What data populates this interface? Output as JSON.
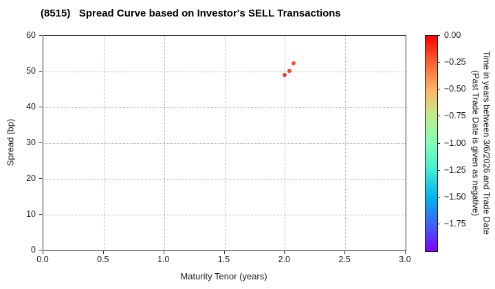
{
  "title": "(8515)   Spread Curve based on Investor's SELL Transactions",
  "chart_data": {
    "type": "scatter",
    "title": "(8515)   Spread Curve based on Investor's SELL Transactions",
    "xlabel": "Maturity Tenor (years)",
    "ylabel": "Spread (bp)",
    "xlim": [
      0.0,
      3.0
    ],
    "ylim": [
      0,
      60
    ],
    "grid": true,
    "x_ticks": [
      0.0,
      0.5,
      1.0,
      1.5,
      2.0,
      2.5,
      3.0
    ],
    "x_tick_labels": [
      "0.0",
      "0.5",
      "1.0",
      "1.5",
      "2.0",
      "2.5",
      "3.0"
    ],
    "y_ticks": [
      0,
      10,
      20,
      30,
      40,
      50,
      60
    ],
    "y_tick_labels": [
      "0",
      "10",
      "20",
      "30",
      "40",
      "50",
      "60"
    ],
    "points": [
      {
        "x": 2.0,
        "y": 49.0,
        "color": "#ee3a20"
      },
      {
        "x": 2.04,
        "y": 50.2,
        "color": "#f3441f"
      },
      {
        "x": 2.07,
        "y": 52.3,
        "color": "#f65029"
      }
    ],
    "colorbar": {
      "label_line1": "Time in years between 3/6/2026 and Trade Date",
      "label_line2": "(Past Trade Date is given as negative)",
      "vmax": 0.0,
      "vmin": -2.0,
      "tick_values": [
        0.0,
        -0.25,
        -0.5,
        -0.75,
        -1.0,
        -1.25,
        -1.5,
        -1.75
      ],
      "tick_labels": [
        "0.00",
        "−0.25",
        "−0.50",
        "−0.75",
        "−1.00",
        "−1.25",
        "−1.50",
        "−1.75"
      ],
      "colormap": "rainbow",
      "gradient_stops": [
        {
          "pos": 0.0,
          "color": "#ff0000"
        },
        {
          "pos": 0.125,
          "color": "#ff6232"
        },
        {
          "pos": 0.25,
          "color": "#ffb462"
        },
        {
          "pos": 0.375,
          "color": "#bfec8e"
        },
        {
          "pos": 0.5,
          "color": "#80ffb4"
        },
        {
          "pos": 0.625,
          "color": "#40ecd4"
        },
        {
          "pos": 0.75,
          "color": "#00b4ec"
        },
        {
          "pos": 0.875,
          "color": "#4063fa"
        },
        {
          "pos": 1.0,
          "color": "#8000ff"
        }
      ]
    }
  }
}
